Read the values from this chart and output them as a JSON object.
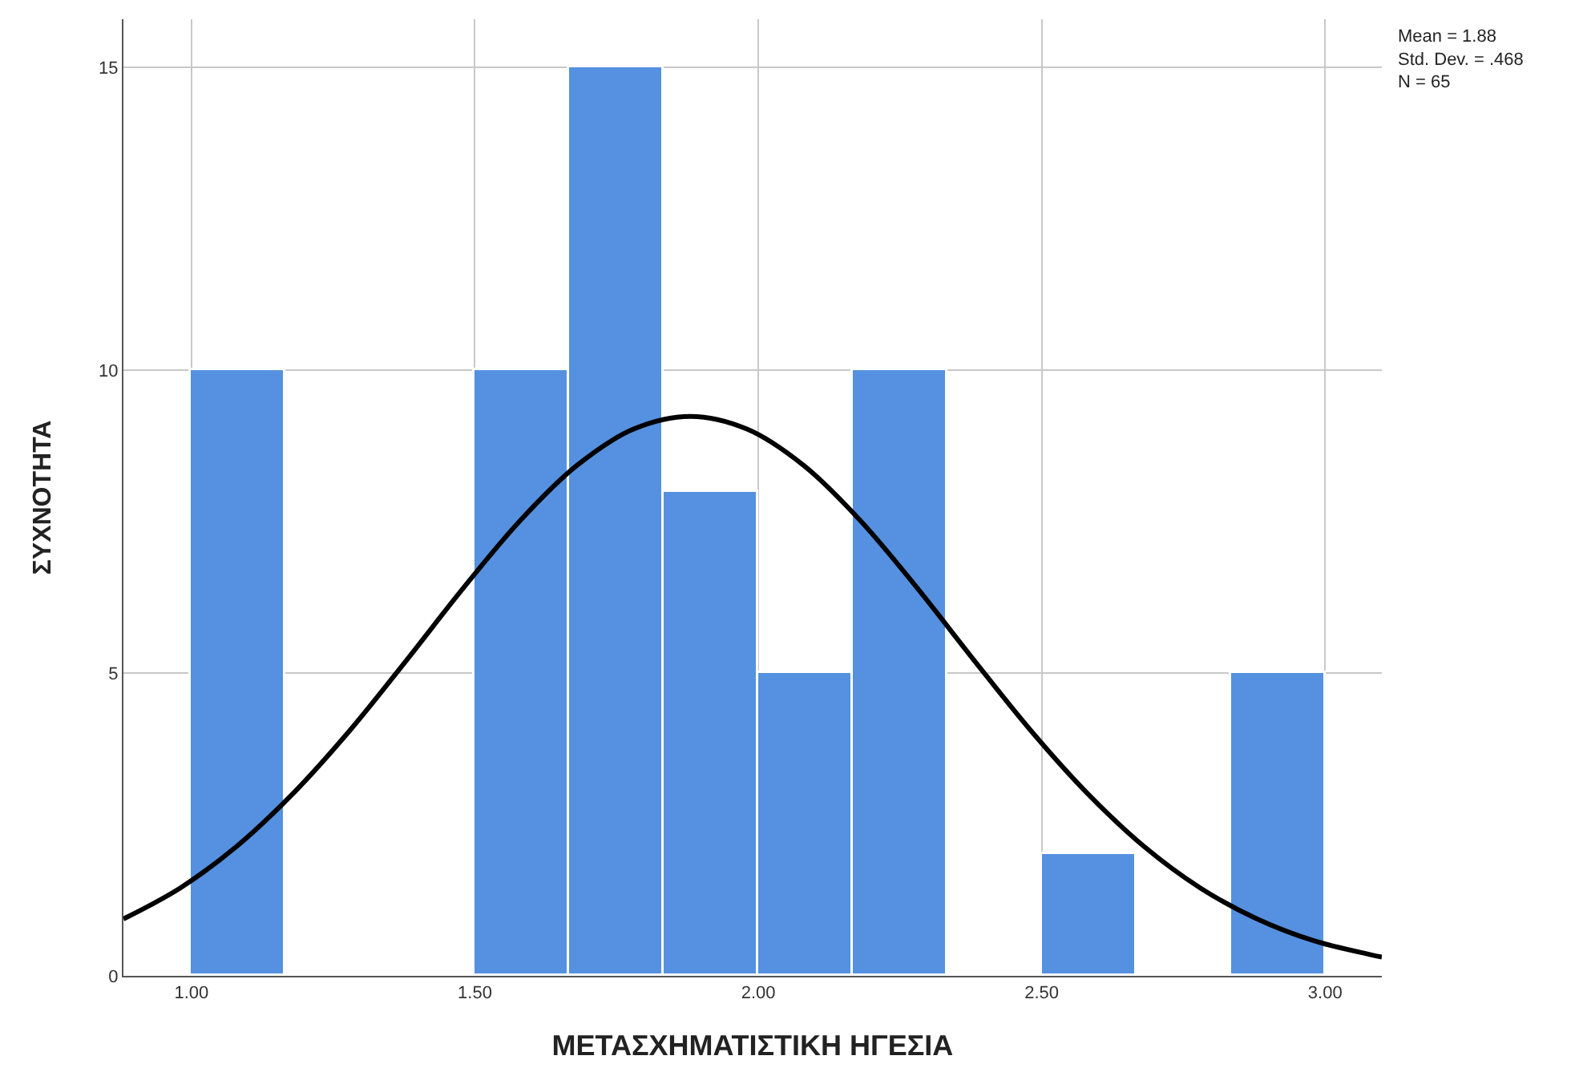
{
  "chart_data": {
    "type": "histogram",
    "xlabel": "ΜΕΤΑΣΧΗΜΑΤΙΣΤΙΚΗ ΗΓΕΣΙΑ",
    "ylabel": "ΣΥΧΝΟΤΗΤΑ",
    "annotations": [
      "Mean = 1.88\nStd. Dev. = .468\nN = 65"
    ],
    "series": [
      {
        "color": "#5591e0",
        "bins": [
          1.0,
          1.167,
          1.5,
          1.667,
          1.833,
          2.0,
          2.167,
          2.333,
          2.5,
          2.667,
          2.833,
          3.0
        ],
        "values": [
          10,
          0,
          10,
          15,
          8,
          5,
          10,
          0,
          2,
          0,
          5
        ]
      },
      {
        "type": "line",
        "color": "#000000",
        "x": [
          0.88,
          0.98,
          1.08,
          1.18,
          1.28,
          1.38,
          1.48,
          1.58,
          1.68,
          1.78,
          1.88,
          1.98,
          2.08,
          2.18,
          2.28,
          2.38,
          2.48,
          2.58,
          2.68,
          2.78,
          2.88,
          2.98,
          3.08,
          3.1
        ],
        "values": [
          0.94,
          1.45,
          2.14,
          3.02,
          4.06,
          5.22,
          6.41,
          7.52,
          8.43,
          9.03,
          9.24,
          9.03,
          8.43,
          7.52,
          6.41,
          5.22,
          4.06,
          3.02,
          2.14,
          1.45,
          0.94,
          0.58,
          0.35,
          0.31
        ]
      }
    ],
    "xlim": [
      0.88,
      3.1
    ],
    "ylim": [
      0,
      15.8
    ],
    "xticks": [
      {
        "value": 1,
        "label": "1.00"
      },
      {
        "value": 1.5,
        "label": "1.50"
      },
      {
        "value": 2,
        "label": "2.00"
      },
      {
        "value": 2.5,
        "label": "2.50"
      },
      {
        "value": 3,
        "label": "3.00"
      }
    ],
    "yticks": [
      0,
      5,
      10,
      15
    ],
    "grid": true,
    "marker": "none",
    "line_style": "solid"
  }
}
